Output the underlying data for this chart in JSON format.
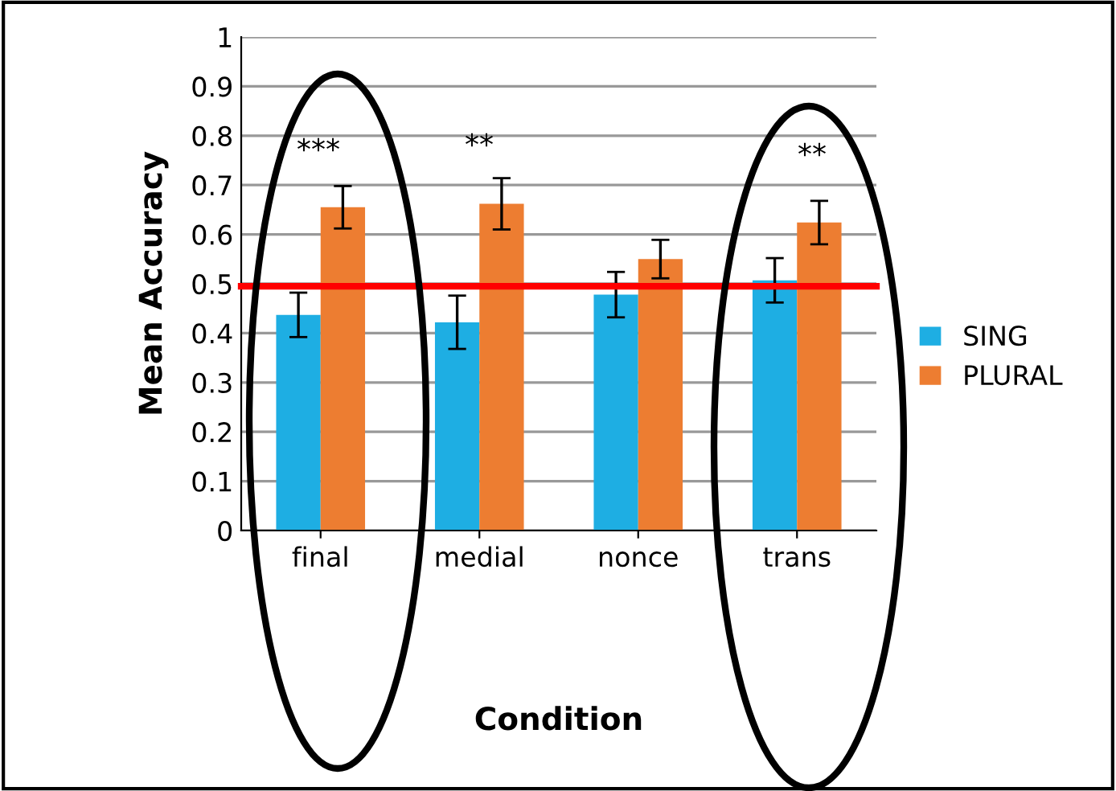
{
  "chart_data": {
    "type": "bar",
    "xlabel": "Condition",
    "ylabel": "Mean Accuracy",
    "categories": [
      "final",
      "medial",
      "nonce",
      "trans"
    ],
    "series": [
      {
        "name": "SING",
        "color": "#1eaee3",
        "values": [
          0.437,
          0.422,
          0.478,
          0.507
        ],
        "errors": [
          0.045,
          0.054,
          0.046,
          0.045
        ]
      },
      {
        "name": "PLURAL",
        "color": "#ed7d31",
        "values": [
          0.655,
          0.662,
          0.55,
          0.624
        ],
        "errors": [
          0.043,
          0.052,
          0.039,
          0.044
        ]
      }
    ],
    "ylim": [
      0,
      1
    ],
    "yticks": [
      0,
      0.1,
      0.2,
      0.3,
      0.4,
      0.5,
      0.6,
      0.7,
      0.8,
      0.9,
      1
    ],
    "grid": "y",
    "legend": "right",
    "ref_lines": [
      {
        "axis": "y",
        "value": 0.495,
        "color": "#ff0000"
      }
    ],
    "annotations": [
      "***",
      "**",
      "**"
    ]
  }
}
